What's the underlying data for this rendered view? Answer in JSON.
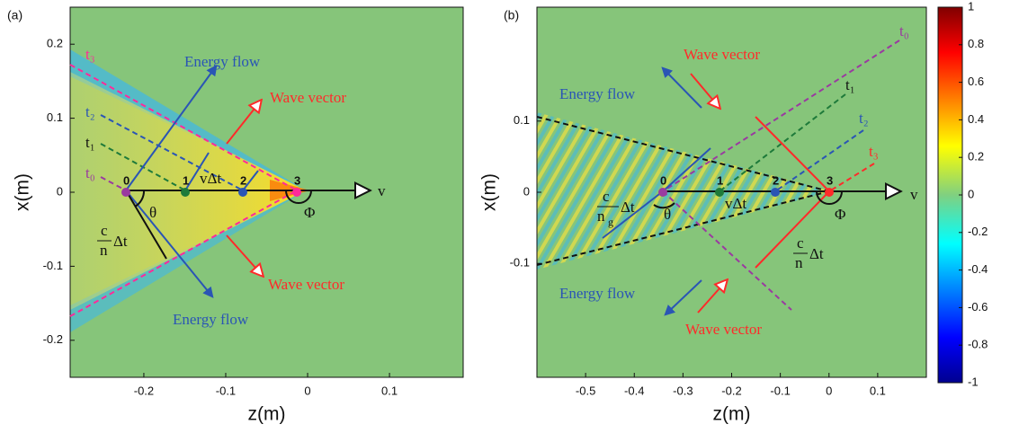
{
  "figure": {
    "panels": [
      {
        "label": "(a)",
        "xlabel": "z(m)",
        "ylabel": "x(m)",
        "xlim": [
          -0.29,
          0.19
        ],
        "ylim": [
          -0.25,
          0.25
        ],
        "xticks": [
          -0.2,
          -0.1,
          0,
          0.1
        ],
        "yticks": [
          0.2,
          0.1,
          0,
          -0.1,
          -0.2
        ],
        "points": [
          "0",
          "1",
          "2",
          "3"
        ],
        "times": [
          "t₀",
          "t₁",
          "t₂",
          "t₃"
        ],
        "annotations": [
          "Energy flow",
          "Wave vector",
          "Wave vector",
          "Energy flow",
          "vΔt",
          "θ",
          "Φ",
          "v",
          "c",
          "n",
          "Δt"
        ]
      },
      {
        "label": "(b)",
        "xlabel": "z(m)",
        "ylabel": "x(m)",
        "xlim": [
          -0.6,
          0.2
        ],
        "ylim": [
          -0.26,
          0.26
        ],
        "xticks": [
          -0.5,
          -0.4,
          -0.3,
          -0.2,
          -0.1,
          0,
          0.1
        ],
        "yticks": [
          0.1,
          0,
          -0.1
        ],
        "points": [
          "0",
          "1",
          "2",
          "3"
        ],
        "times": [
          "t₀",
          "t₁",
          "t₂",
          "t₃"
        ],
        "annotations": [
          "Wave vector",
          "Energy flow",
          "Energy flow",
          "Wave vector",
          "vΔt",
          "θ",
          "Φ",
          "v",
          "c",
          "n",
          "g",
          "Δt",
          "c",
          "n",
          "Δt"
        ]
      }
    ],
    "colorbar": {
      "ylim": [
        -1,
        1
      ],
      "ticks": [
        1,
        0.8,
        0.6,
        0.4,
        0.2,
        0,
        -0.2,
        -0.4,
        -0.6,
        -0.8,
        -1
      ]
    }
  }
}
